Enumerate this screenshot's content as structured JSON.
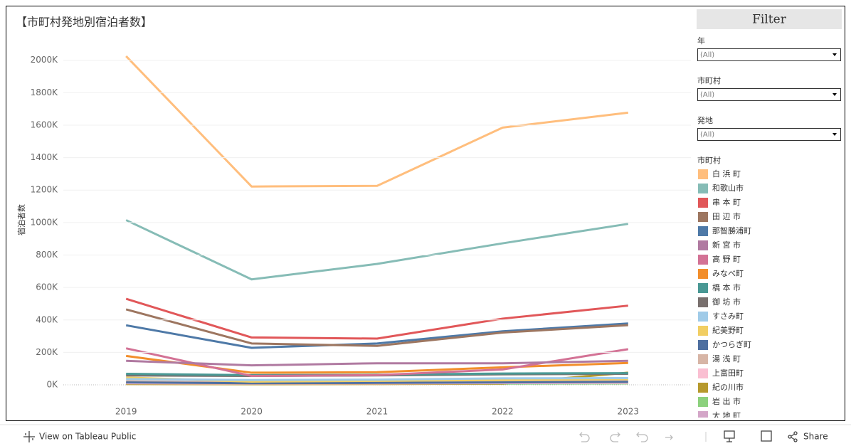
{
  "chart_data": {
    "type": "line",
    "title": "【市町村発地別宿泊者数】",
    "y_label": "宿泊者数",
    "categories": [
      "2019",
      "2020",
      "2021",
      "2022",
      "2023"
    ],
    "ylim": [
      -105000,
      2130000
    ],
    "yticks": [
      {
        "value": 0,
        "label": "0K"
      },
      {
        "value": 200000,
        "label": "200K"
      },
      {
        "value": 400000,
        "label": "400K"
      },
      {
        "value": 600000,
        "label": "600K"
      },
      {
        "value": 800000,
        "label": "800K"
      },
      {
        "value": 1000000,
        "label": "1000K"
      },
      {
        "value": 1200000,
        "label": "1200K"
      },
      {
        "value": 1400000,
        "label": "1400K"
      },
      {
        "value": 1600000,
        "label": "1600K"
      },
      {
        "value": 1800000,
        "label": "1800K"
      },
      {
        "value": 2000000,
        "label": "2000K"
      }
    ],
    "grid": true,
    "legend_title": "市町村",
    "series": [
      {
        "name": "白 浜 町",
        "color": "#ffbe7d",
        "values": [
          2025000,
          1222000,
          1226000,
          1585000,
          1677000
        ]
      },
      {
        "name": "和歌山市",
        "color": "#86bcb6",
        "values": [
          1015000,
          650000,
          745000,
          872000,
          992000
        ]
      },
      {
        "name": "串 本 町",
        "color": "#e15759",
        "values": [
          530000,
          292000,
          285000,
          408000,
          488000
        ]
      },
      {
        "name": "田 辺 市",
        "color": "#9d7660",
        "values": [
          465000,
          255000,
          240000,
          322000,
          368000
        ]
      },
      {
        "name": "那智勝浦町",
        "color": "#4e79a7",
        "values": [
          367000,
          228000,
          255000,
          330000,
          378000
        ]
      },
      {
        "name": "新 宮 市",
        "color": "#b07aa1",
        "values": [
          148000,
          120000,
          133000,
          133000,
          148000
        ]
      },
      {
        "name": "高 野 町",
        "color": "#d37295",
        "values": [
          225000,
          55000,
          60000,
          95000,
          220000
        ]
      },
      {
        "name": "みなべ町",
        "color": "#f28e2b",
        "values": [
          178000,
          75000,
          78000,
          108000,
          135000
        ]
      },
      {
        "name": "橋 本 市",
        "color": "#499894",
        "values": [
          68000,
          60000,
          62000,
          70000,
          72000
        ]
      },
      {
        "name": "御 坊 市",
        "color": "#79706e",
        "values": [
          58000,
          55000,
          58000,
          65000,
          68000
        ]
      },
      {
        "name": "すさみ町",
        "color": "#a0cbe8",
        "values": [
          35000,
          30000,
          32000,
          40000,
          42000
        ]
      },
      {
        "name": "紀美野町",
        "color": "#f1ce63",
        "values": [
          45000,
          20000,
          25000,
          30000,
          35000
        ]
      },
      {
        "name": "かつらぎ町",
        "color": "#4e6fa0",
        "values": [
          15000,
          10000,
          12000,
          15000,
          18000
        ]
      },
      {
        "name": "湯 浅 町",
        "color": "#d7b5a6",
        "values": [
          22000,
          15000,
          18000,
          20000,
          22000
        ]
      },
      {
        "name": "上富田町",
        "color": "#fabfd2",
        "values": [
          10000,
          8000,
          9000,
          11000,
          12000
        ]
      },
      {
        "name": "紀の川市",
        "color": "#b6992d",
        "values": [
          5000,
          4000,
          5000,
          8000,
          75000
        ]
      },
      {
        "name": "岩 出 市",
        "color": "#8cd17d",
        "values": [
          8000,
          6000,
          7000,
          8000,
          9000
        ]
      },
      {
        "name": "太 地 町",
        "color": "#d4a6c8",
        "values": [
          10000,
          6000,
          7000,
          9000,
          10000
        ]
      }
    ]
  },
  "filter_panel": {
    "title": "Filter",
    "filters": [
      {
        "label": "年",
        "value": "(All)"
      },
      {
        "label": "市町村",
        "value": "(All)"
      },
      {
        "label": "発地",
        "value": "(All)"
      }
    ]
  },
  "toolbar": {
    "view_link": "View on Tableau Public",
    "share": "Share"
  }
}
